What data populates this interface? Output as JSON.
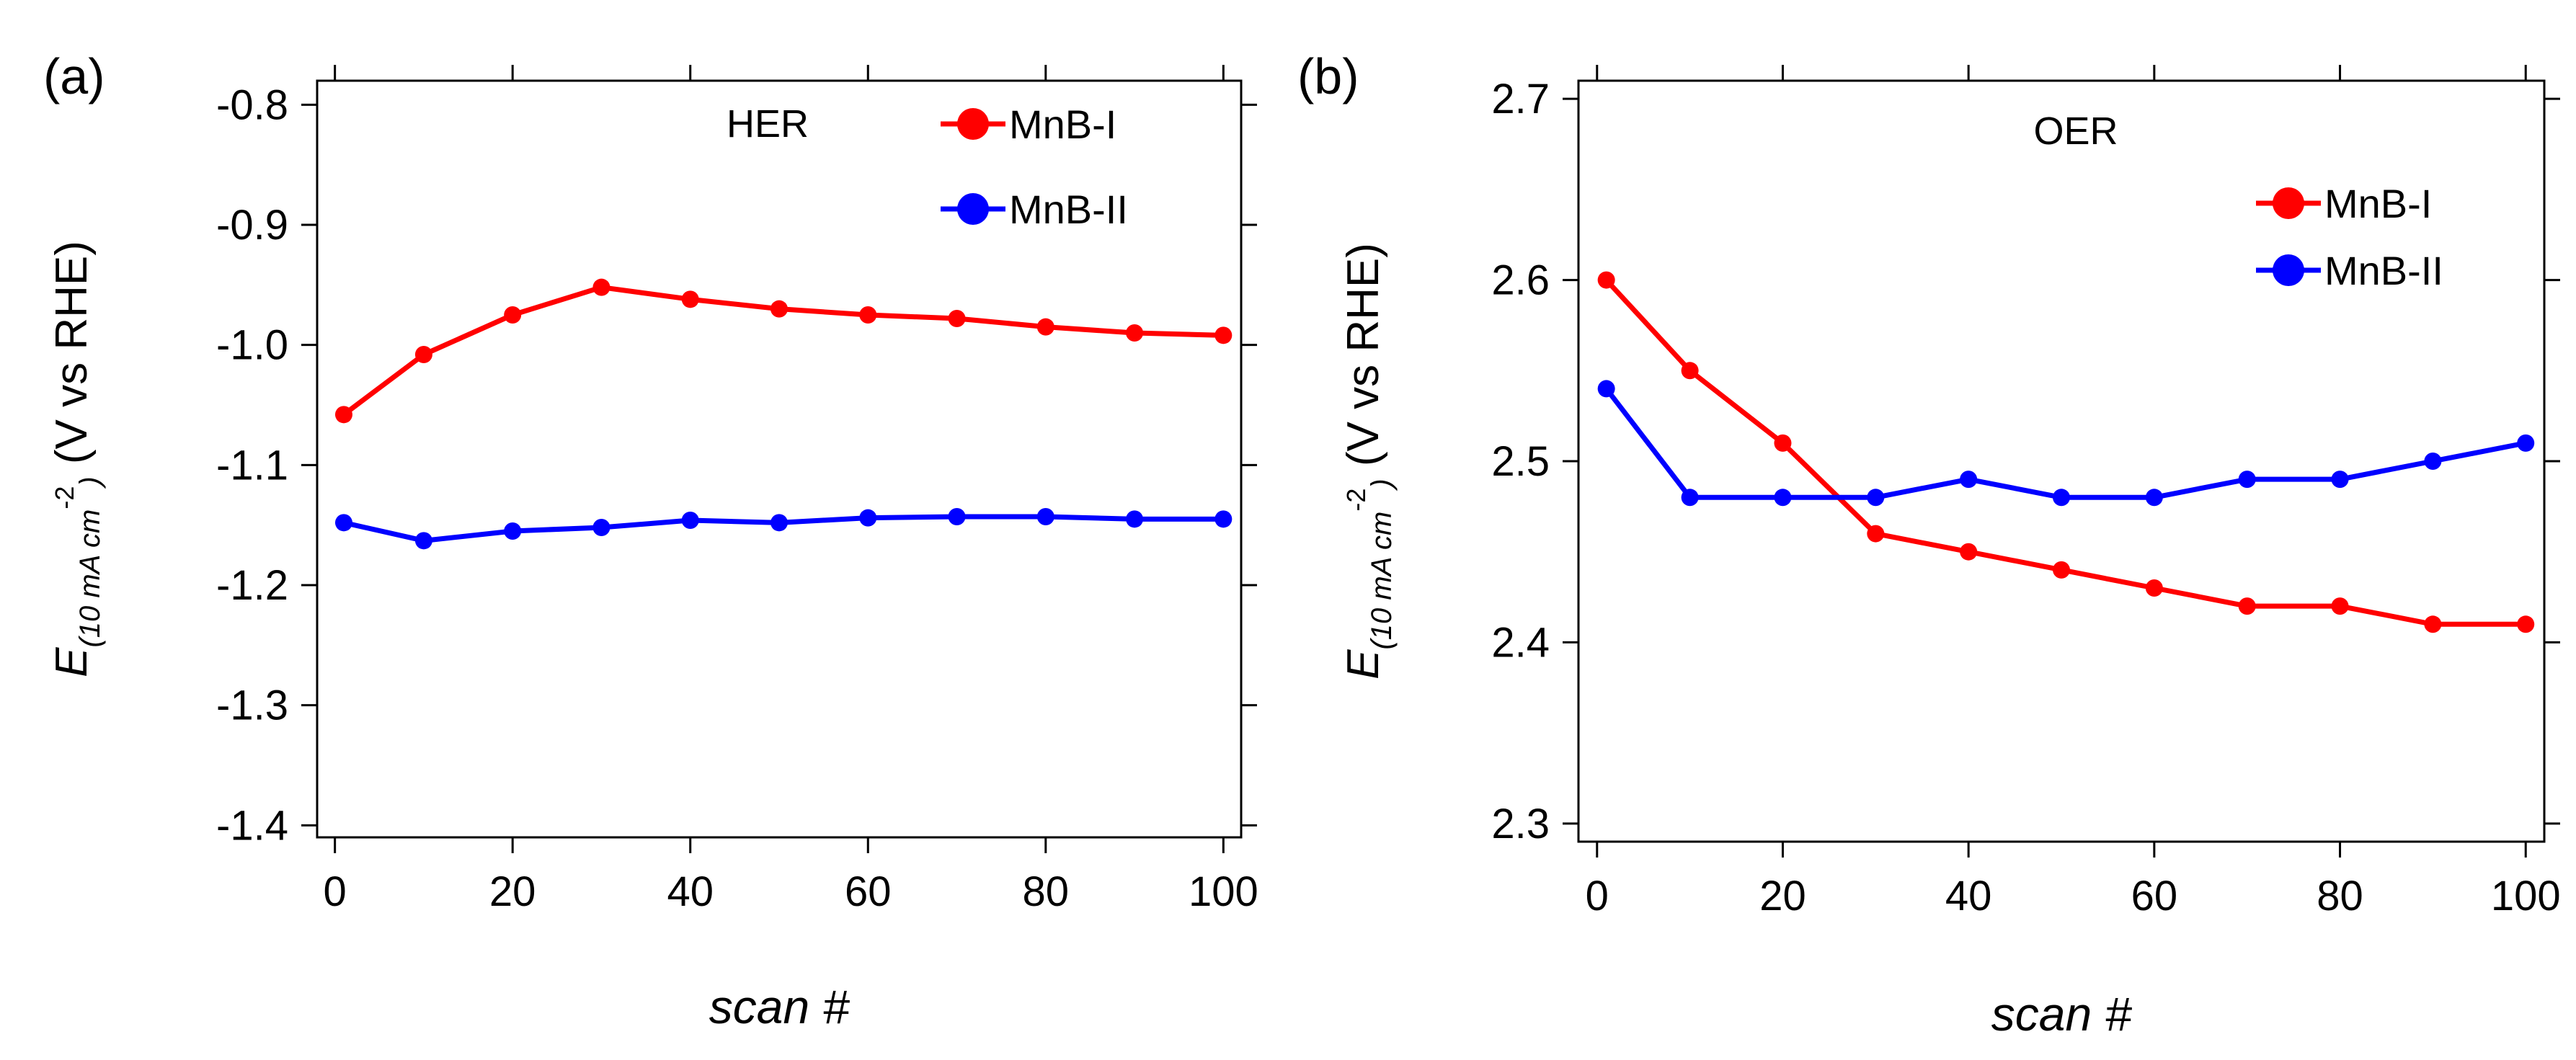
{
  "chart_data": [
    {
      "type": "line",
      "panel_label": "(a)",
      "annotation": "HER",
      "xlabel": "scan #",
      "ylabel": {
        "symbol": "E",
        "sub": "(10 mA cm",
        "sup": "-2",
        "close": ")",
        "units": " (V vs RHE)"
      },
      "xlim": [
        -2,
        102
      ],
      "ylim": [
        -1.41,
        -0.78
      ],
      "xticks": [
        0,
        20,
        40,
        60,
        80,
        100
      ],
      "xtick_labels": [
        "0",
        "20",
        "40",
        "60",
        "80",
        "100"
      ],
      "yticks": [
        -1.4,
        -1.3,
        -1.2,
        -1.1,
        -1.0,
        -0.9,
        -0.8
      ],
      "ytick_labels": [
        "-1.4",
        "-1.3",
        "-1.2",
        "-1.1",
        "-1.0",
        "-0.9",
        "-0.8"
      ],
      "legend_position": "top-right",
      "x": [
        1,
        10,
        20,
        30,
        40,
        50,
        60,
        70,
        80,
        90,
        100
      ],
      "series": [
        {
          "name": "MnB-I",
          "color": "#ff0000",
          "values": [
            -1.058,
            -1.008,
            -0.975,
            -0.952,
            -0.962,
            -0.97,
            -0.975,
            -0.978,
            -0.985,
            -0.99,
            -0.992
          ]
        },
        {
          "name": "MnB-II",
          "color": "#0000ff",
          "values": [
            -1.148,
            -1.163,
            -1.155,
            -1.152,
            -1.146,
            -1.148,
            -1.144,
            -1.143,
            -1.143,
            -1.145,
            -1.145
          ]
        }
      ]
    },
    {
      "type": "line",
      "panel_label": "(b)",
      "annotation": "OER",
      "xlabel": "scan #",
      "ylabel": {
        "symbol": "E",
        "sub": "(10 mA cm",
        "sup": "-2",
        "close": ")",
        "units": " (V vs RHE)"
      },
      "xlim": [
        -2,
        102
      ],
      "ylim": [
        2.29,
        2.71
      ],
      "xticks": [
        0,
        20,
        40,
        60,
        80,
        100
      ],
      "xtick_labels": [
        "0",
        "20",
        "40",
        "60",
        "80",
        "100"
      ],
      "yticks": [
        2.3,
        2.4,
        2.5,
        2.6,
        2.7
      ],
      "ytick_labels": [
        "2.3",
        "2.4",
        "2.5",
        "2.6",
        "2.7"
      ],
      "legend_position": "top-right",
      "x": [
        1,
        10,
        20,
        30,
        40,
        50,
        60,
        70,
        80,
        90,
        100
      ],
      "series": [
        {
          "name": "MnB-I",
          "color": "#ff0000",
          "values": [
            2.6,
            2.55,
            2.51,
            2.46,
            2.45,
            2.44,
            2.43,
            2.42,
            2.42,
            2.41,
            2.41
          ]
        },
        {
          "name": "MnB-II",
          "color": "#0000ff",
          "values": [
            2.54,
            2.48,
            2.48,
            2.48,
            2.49,
            2.48,
            2.48,
            2.49,
            2.49,
            2.5,
            2.51
          ]
        }
      ]
    }
  ]
}
